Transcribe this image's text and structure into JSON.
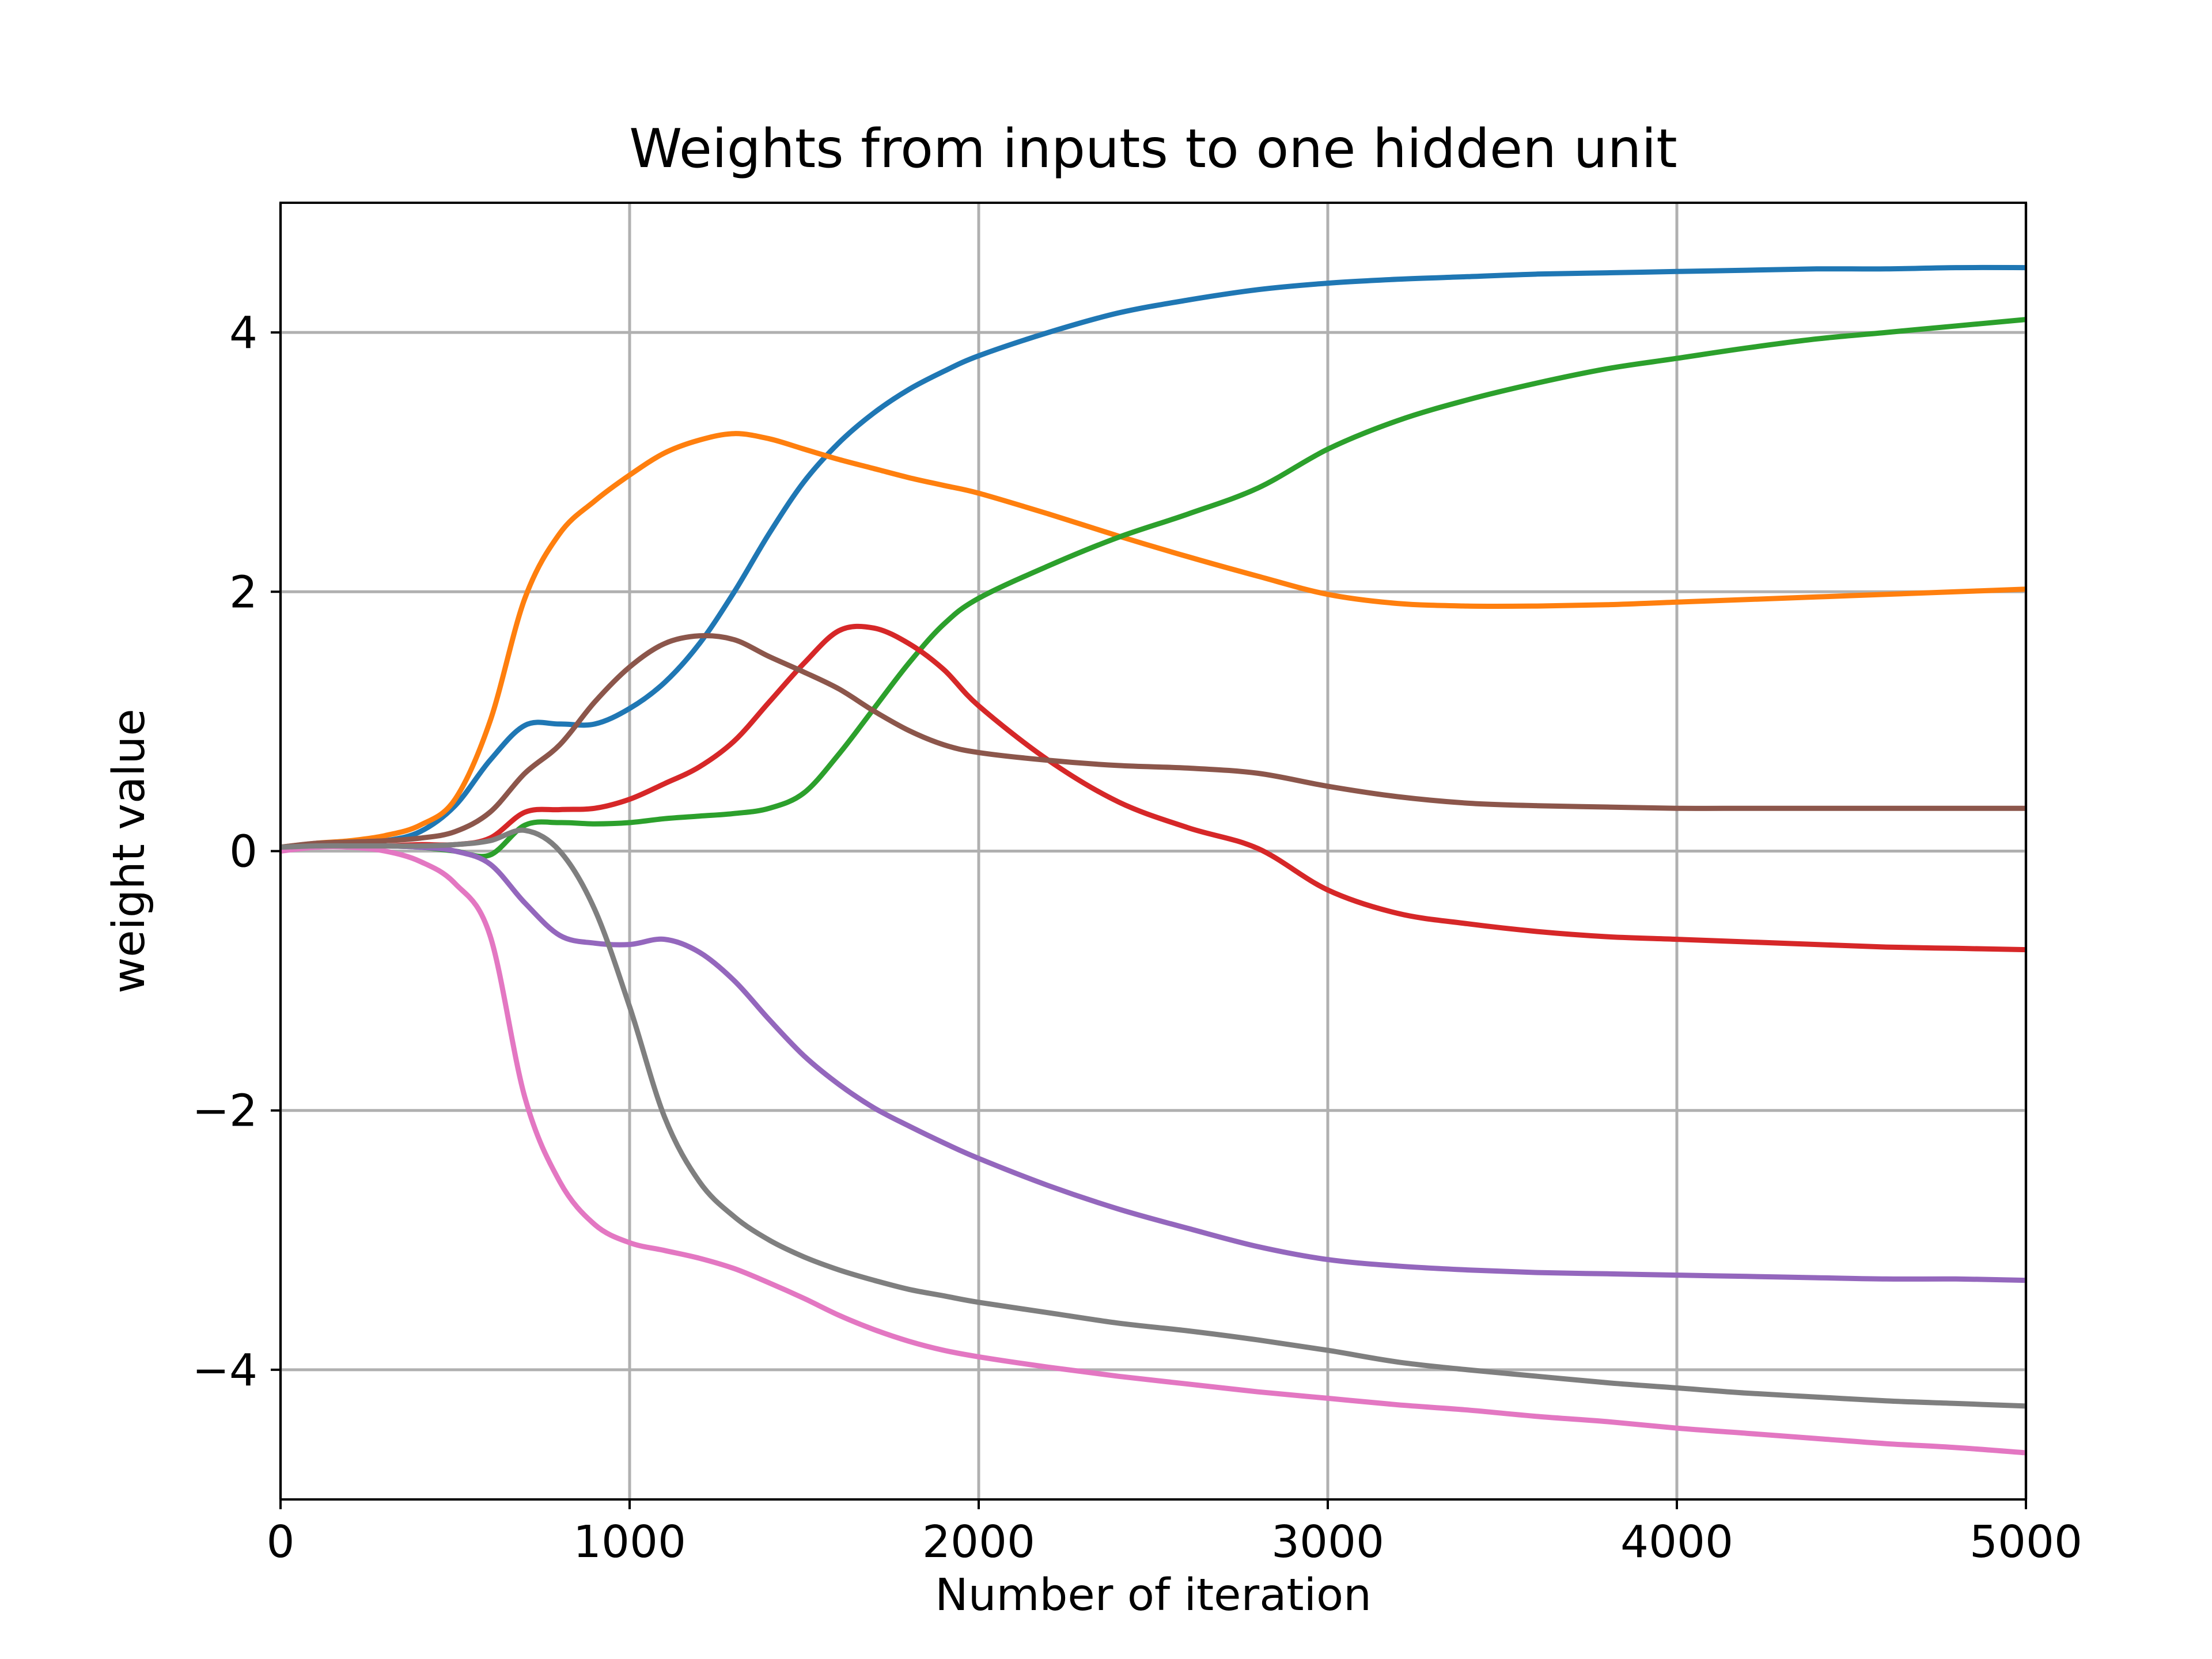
{
  "chart_data": {
    "type": "line",
    "title": "Weights from inputs to one hidden unit",
    "xlabel": "Number of iteration",
    "ylabel": "weight value",
    "xlim": [
      0,
      5000
    ],
    "ylim": [
      -5,
      5
    ],
    "xticks": [
      0,
      1000,
      2000,
      3000,
      4000,
      5000
    ],
    "xtick_labels": [
      "0",
      "1000",
      "2000",
      "3000",
      "4000",
      "5000"
    ],
    "yticks": [
      -4,
      -2,
      0,
      2,
      4
    ],
    "ytick_labels": [
      "−4",
      "−2",
      "0",
      "2",
      "4"
    ],
    "grid": true,
    "legend": false,
    "x": [
      0,
      100,
      200,
      300,
      400,
      500,
      600,
      700,
      800,
      900,
      1000,
      1100,
      1200,
      1300,
      1400,
      1500,
      1600,
      1700,
      1800,
      1900,
      2000,
      2200,
      2400,
      2600,
      2800,
      3000,
      3200,
      3400,
      3600,
      3800,
      4000,
      4200,
      4400,
      4600,
      4800,
      5000
    ],
    "series": [
      {
        "color": "#1f77b4",
        "values": [
          0.03,
          0.05,
          0.06,
          0.08,
          0.15,
          0.35,
          0.7,
          0.97,
          0.98,
          0.98,
          1.1,
          1.3,
          1.6,
          2.0,
          2.45,
          2.85,
          3.15,
          3.38,
          3.56,
          3.7,
          3.82,
          4.0,
          4.15,
          4.25,
          4.33,
          4.38,
          4.41,
          4.43,
          4.45,
          4.46,
          4.47,
          4.48,
          4.49,
          4.49,
          4.5,
          4.5
        ]
      },
      {
        "color": "#ff7f0e",
        "values": [
          0.03,
          0.06,
          0.08,
          0.12,
          0.2,
          0.4,
          1.0,
          1.95,
          2.45,
          2.7,
          2.9,
          3.07,
          3.17,
          3.22,
          3.18,
          3.1,
          3.02,
          2.95,
          2.88,
          2.82,
          2.76,
          2.6,
          2.43,
          2.27,
          2.12,
          1.98,
          1.91,
          1.89,
          1.89,
          1.9,
          1.92,
          1.94,
          1.96,
          1.98,
          2.0,
          2.02
        ]
      },
      {
        "color": "#2ca02c",
        "values": [
          0.03,
          0.04,
          0.04,
          0.04,
          0.03,
          0.0,
          -0.03,
          0.2,
          0.22,
          0.21,
          0.22,
          0.25,
          0.27,
          0.29,
          0.33,
          0.45,
          0.75,
          1.1,
          1.45,
          1.75,
          1.95,
          2.2,
          2.42,
          2.6,
          2.8,
          3.1,
          3.32,
          3.48,
          3.61,
          3.72,
          3.8,
          3.88,
          3.95,
          4.0,
          4.05,
          4.1
        ]
      },
      {
        "color": "#d62728",
        "values": [
          0.03,
          0.04,
          0.04,
          0.04,
          0.05,
          0.05,
          0.1,
          0.3,
          0.32,
          0.33,
          0.4,
          0.52,
          0.65,
          0.85,
          1.15,
          1.45,
          1.7,
          1.72,
          1.6,
          1.4,
          1.12,
          0.7,
          0.38,
          0.18,
          0.02,
          -0.3,
          -0.48,
          -0.56,
          -0.62,
          -0.66,
          -0.68,
          -0.7,
          -0.72,
          -0.74,
          -0.75,
          -0.76
        ]
      },
      {
        "color": "#9467bd",
        "values": [
          0.03,
          0.04,
          0.04,
          0.04,
          0.03,
          0.0,
          -0.1,
          -0.4,
          -0.65,
          -0.71,
          -0.72,
          -0.68,
          -0.78,
          -1.0,
          -1.3,
          -1.58,
          -1.8,
          -1.98,
          -2.12,
          -2.25,
          -2.37,
          -2.58,
          -2.76,
          -2.91,
          -3.05,
          -3.15,
          -3.2,
          -3.23,
          -3.25,
          -3.26,
          -3.27,
          -3.28,
          -3.29,
          -3.3,
          -3.3,
          -3.31
        ]
      },
      {
        "color": "#8c564b",
        "values": [
          0.03,
          0.06,
          0.07,
          0.08,
          0.1,
          0.15,
          0.3,
          0.6,
          0.82,
          1.15,
          1.42,
          1.6,
          1.66,
          1.63,
          1.5,
          1.38,
          1.25,
          1.08,
          0.93,
          0.82,
          0.76,
          0.7,
          0.66,
          0.64,
          0.6,
          0.5,
          0.42,
          0.37,
          0.35,
          0.34,
          0.33,
          0.33,
          0.33,
          0.33,
          0.33,
          0.33
        ]
      },
      {
        "color": "#e377c2",
        "values": [
          0.0,
          0.03,
          0.03,
          0.0,
          -0.08,
          -0.25,
          -0.65,
          -1.9,
          -2.55,
          -2.88,
          -3.02,
          -3.08,
          -3.14,
          -3.22,
          -3.33,
          -3.45,
          -3.58,
          -3.69,
          -3.78,
          -3.85,
          -3.9,
          -3.98,
          -4.05,
          -4.11,
          -4.17,
          -4.22,
          -4.27,
          -4.31,
          -4.36,
          -4.4,
          -4.45,
          -4.49,
          -4.53,
          -4.57,
          -4.6,
          -4.64
        ]
      },
      {
        "color": "#7f7f7f",
        "values": [
          0.03,
          0.04,
          0.04,
          0.04,
          0.04,
          0.05,
          0.08,
          0.16,
          0.0,
          -0.45,
          -1.2,
          -2.05,
          -2.55,
          -2.82,
          -3.0,
          -3.13,
          -3.23,
          -3.31,
          -3.38,
          -3.43,
          -3.48,
          -3.56,
          -3.64,
          -3.7,
          -3.77,
          -3.85,
          -3.94,
          -4.0,
          -4.05,
          -4.1,
          -4.14,
          -4.18,
          -4.21,
          -4.24,
          -4.26,
          -4.28
        ]
      }
    ]
  }
}
